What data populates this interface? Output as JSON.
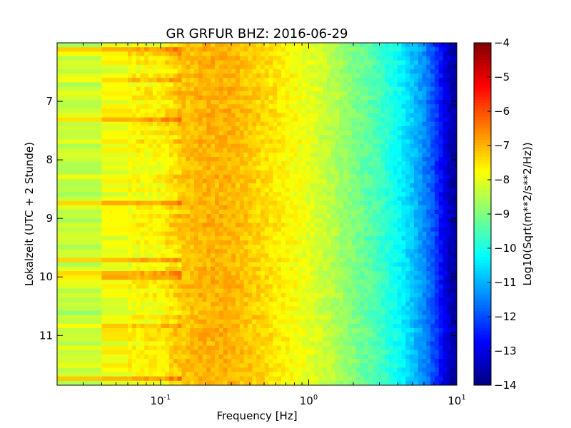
{
  "chart_data": {
    "type": "heatmap",
    "title": "GR GRFUR BHZ: 2016-06-29",
    "xlabel": "Frequency [Hz]",
    "ylabel": "Lokalzeit (UTC + 2 Stunde)",
    "x_scale": "log",
    "xlim": [
      0.02,
      10
    ],
    "ylim": [
      11.85,
      6.0
    ],
    "x_ticks": [
      {
        "value": 0.1,
        "base": "10",
        "exp": "-1"
      },
      {
        "value": 1,
        "base": "10",
        "exp": "0"
      },
      {
        "value": 10,
        "base": "10",
        "exp": "1"
      }
    ],
    "y_ticks": [
      {
        "value": 7,
        "label": "7"
      },
      {
        "value": 8,
        "label": "8"
      },
      {
        "value": 9,
        "label": "9"
      },
      {
        "value": 10,
        "label": "10"
      },
      {
        "value": 11,
        "label": "11"
      }
    ],
    "colorbar": {
      "label": "Log10(Sqrt(m**2/s**2/Hz))",
      "colormap": "jet",
      "range": [
        -14,
        -4
      ],
      "ticks": [
        {
          "value": -4,
          "label": "−4"
        },
        {
          "value": -5,
          "label": "−5"
        },
        {
          "value": -6,
          "label": "−6"
        },
        {
          "value": -7,
          "label": "−7"
        },
        {
          "value": -8,
          "label": "−8"
        },
        {
          "value": -9,
          "label": "−9"
        },
        {
          "value": -10,
          "label": "−10"
        },
        {
          "value": -11,
          "label": "−11"
        },
        {
          "value": -12,
          "label": "−12"
        },
        {
          "value": -13,
          "label": "−13"
        },
        {
          "value": -14,
          "label": "−14"
        }
      ]
    },
    "spectrum_profile": {
      "frequency_hz": [
        0.02,
        0.03,
        0.04,
        0.06,
        0.1,
        0.14,
        0.2,
        0.3,
        0.5,
        0.8,
        1.0,
        1.5,
        2.0,
        3.0,
        4.0,
        5.0,
        6.0,
        7.0,
        8.0,
        9.0,
        10.0
      ],
      "median_value": [
        -8.4,
        -8.3,
        -8.0,
        -7.8,
        -7.7,
        -7.2,
        -7.0,
        -7.0,
        -7.4,
        -7.8,
        -8.0,
        -8.5,
        -9.0,
        -9.6,
        -10.2,
        -10.8,
        -11.4,
        -12.0,
        -12.8,
        -13.4,
        -13.8
      ]
    },
    "grid": false,
    "legend": "none"
  }
}
